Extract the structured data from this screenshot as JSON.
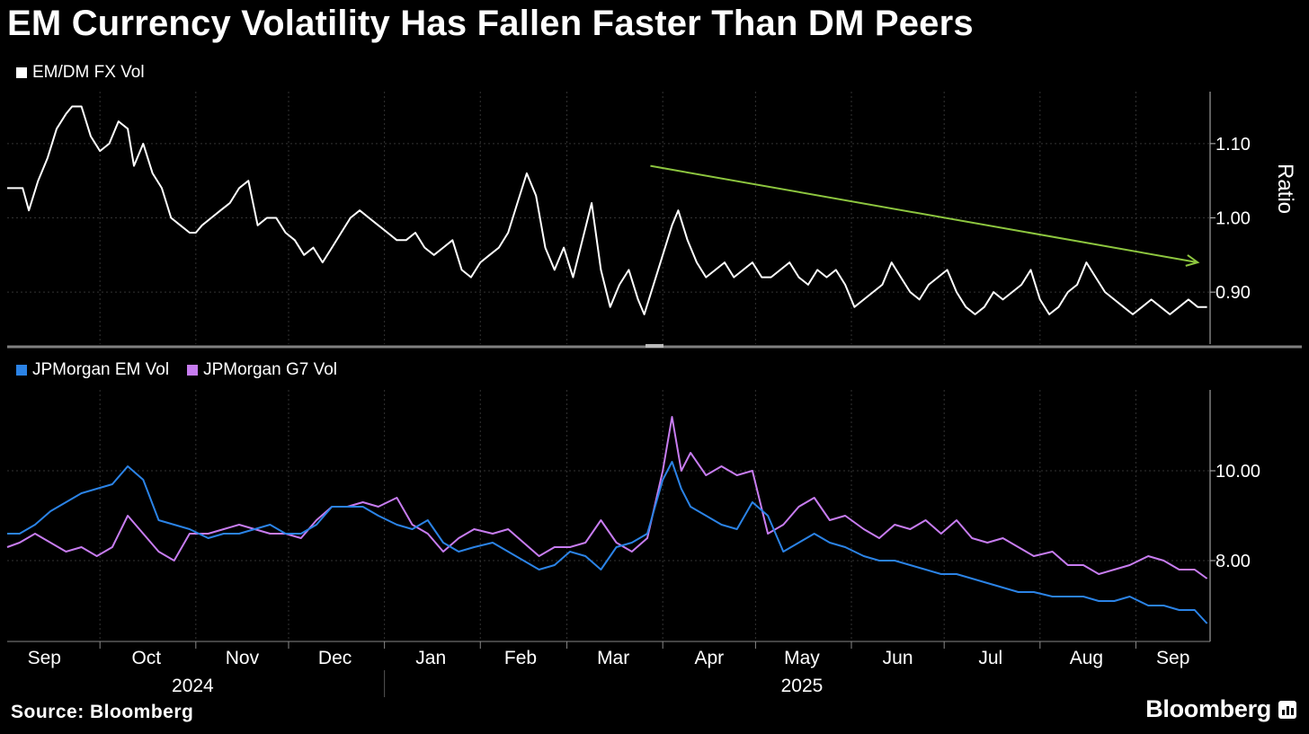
{
  "header": {
    "title": "EM Currency Volatility Has Fallen Faster Than DM Peers"
  },
  "footer": {
    "source": "Source: Bloomberg",
    "brand": "Bloomberg"
  },
  "colors": {
    "background": "#000000",
    "ratio": "#ffffff",
    "em": "#2b83e6",
    "g7": "#c77cf0",
    "trend": "#8dc63f",
    "grid": "#333333",
    "divider": "#7f7f7f"
  },
  "x_axis": {
    "months": [
      "Sep",
      "Oct",
      "Nov",
      "Dec",
      "Jan",
      "Feb",
      "Mar",
      "Apr",
      "May",
      "Jun",
      "Jul",
      "Aug",
      "Sep"
    ],
    "years": [
      "2024",
      "2025"
    ]
  },
  "chart_data": [
    {
      "id": "top",
      "type": "line",
      "legend": "EM/DM FX Vol",
      "ylabel": "Ratio",
      "ylim": [
        0.83,
        1.17
      ],
      "yticks": [
        "1.10",
        "1.00",
        "0.90"
      ],
      "x_range": [
        "2024-09-01",
        "2025-09-25"
      ],
      "series": [
        {
          "name": "EM/DM FX Vol",
          "x": [
            "2024-09-01",
            "2024-09-06",
            "2024-09-08",
            "2024-09-11",
            "2024-09-14",
            "2024-09-17",
            "2024-09-20",
            "2024-09-22",
            "2024-09-25",
            "2024-09-28",
            "2024-10-01",
            "2024-10-04",
            "2024-10-07",
            "2024-10-10",
            "2024-10-12",
            "2024-10-15",
            "2024-10-18",
            "2024-10-21",
            "2024-10-24",
            "2024-10-27",
            "2024-10-30",
            "2024-11-01",
            "2024-11-03",
            "2024-11-06",
            "2024-11-09",
            "2024-11-12",
            "2024-11-15",
            "2024-11-18",
            "2024-11-21",
            "2024-11-24",
            "2024-11-27",
            "2024-11-30",
            "2024-12-03",
            "2024-12-06",
            "2024-12-09",
            "2024-12-12",
            "2024-12-15",
            "2024-12-18",
            "2024-12-21",
            "2024-12-24",
            "2024-12-27",
            "2024-12-30",
            "2025-01-02",
            "2025-01-05",
            "2025-01-08",
            "2025-01-11",
            "2025-01-14",
            "2025-01-17",
            "2025-01-20",
            "2025-01-23",
            "2025-01-26",
            "2025-01-29",
            "2025-02-01",
            "2025-02-04",
            "2025-02-07",
            "2025-02-10",
            "2025-02-13",
            "2025-02-16",
            "2025-02-19",
            "2025-02-22",
            "2025-02-25",
            "2025-02-28",
            "2025-03-03",
            "2025-03-06",
            "2025-03-09",
            "2025-03-12",
            "2025-03-15",
            "2025-03-18",
            "2025-03-21",
            "2025-03-24",
            "2025-03-26",
            "2025-03-29",
            "2025-04-01",
            "2025-04-04",
            "2025-04-06",
            "2025-04-09",
            "2025-04-12",
            "2025-04-15",
            "2025-04-18",
            "2025-04-21",
            "2025-04-24",
            "2025-04-27",
            "2025-04-30",
            "2025-05-03",
            "2025-05-06",
            "2025-05-09",
            "2025-05-12",
            "2025-05-15",
            "2025-05-18",
            "2025-05-21",
            "2025-05-24",
            "2025-05-27",
            "2025-05-30",
            "2025-06-02",
            "2025-06-05",
            "2025-06-08",
            "2025-06-11",
            "2025-06-14",
            "2025-06-17",
            "2025-06-20",
            "2025-06-23",
            "2025-06-26",
            "2025-06-29",
            "2025-07-02",
            "2025-07-05",
            "2025-07-08",
            "2025-07-11",
            "2025-07-14",
            "2025-07-17",
            "2025-07-20",
            "2025-07-23",
            "2025-07-26",
            "2025-07-29",
            "2025-08-01",
            "2025-08-04",
            "2025-08-07",
            "2025-08-10",
            "2025-08-13",
            "2025-08-16",
            "2025-08-19",
            "2025-08-22",
            "2025-08-25",
            "2025-08-28",
            "2025-08-31",
            "2025-09-03",
            "2025-09-06",
            "2025-09-09",
            "2025-09-12",
            "2025-09-15",
            "2025-09-18",
            "2025-09-21",
            "2025-09-24"
          ],
          "values": [
            1.04,
            1.04,
            1.01,
            1.05,
            1.08,
            1.12,
            1.14,
            1.15,
            1.15,
            1.11,
            1.09,
            1.1,
            1.13,
            1.12,
            1.07,
            1.1,
            1.06,
            1.04,
            1.0,
            0.99,
            0.98,
            0.98,
            0.99,
            1.0,
            1.01,
            1.02,
            1.04,
            1.05,
            0.99,
            1.0,
            1.0,
            0.98,
            0.97,
            0.95,
            0.96,
            0.94,
            0.96,
            0.98,
            1.0,
            1.01,
            1.0,
            0.99,
            0.98,
            0.97,
            0.97,
            0.98,
            0.96,
            0.95,
            0.96,
            0.97,
            0.93,
            0.92,
            0.94,
            0.95,
            0.96,
            0.98,
            1.02,
            1.06,
            1.03,
            0.96,
            0.93,
            0.96,
            0.92,
            0.97,
            1.02,
            0.93,
            0.88,
            0.91,
            0.93,
            0.89,
            0.87,
            0.91,
            0.95,
            0.99,
            1.01,
            0.97,
            0.94,
            0.92,
            0.93,
            0.94,
            0.92,
            0.93,
            0.94,
            0.92,
            0.92,
            0.93,
            0.94,
            0.92,
            0.91,
            0.93,
            0.92,
            0.93,
            0.91,
            0.88,
            0.89,
            0.9,
            0.91,
            0.94,
            0.92,
            0.9,
            0.89,
            0.91,
            0.92,
            0.93,
            0.9,
            0.88,
            0.87,
            0.88,
            0.9,
            0.89,
            0.9,
            0.91,
            0.93,
            0.89,
            0.87,
            0.88,
            0.9,
            0.91,
            0.94,
            0.92,
            0.9,
            0.89,
            0.88,
            0.87,
            0.88,
            0.89,
            0.88,
            0.87,
            0.88,
            0.89,
            0.88,
            0.88
          ]
        }
      ],
      "trend": {
        "x": [
          "2025-03-28",
          "2025-09-21"
        ],
        "values": [
          1.07,
          0.94
        ]
      }
    },
    {
      "id": "bottom",
      "type": "line",
      "ylim": [
        6.2,
        11.8
      ],
      "yticks": [
        "10.00",
        "8.00"
      ],
      "x_range": [
        "2024-09-01",
        "2025-09-25"
      ],
      "series": [
        {
          "name": "JPMorgan EM Vol",
          "x": [
            "2024-09-01",
            "2024-09-05",
            "2024-09-10",
            "2024-09-15",
            "2024-09-20",
            "2024-09-25",
            "2024-09-30",
            "2024-10-05",
            "2024-10-10",
            "2024-10-15",
            "2024-10-20",
            "2024-10-25",
            "2024-10-30",
            "2024-11-05",
            "2024-11-10",
            "2024-11-15",
            "2024-11-20",
            "2024-11-25",
            "2024-11-30",
            "2024-12-05",
            "2024-12-10",
            "2024-12-15",
            "2024-12-20",
            "2024-12-25",
            "2024-12-30",
            "2025-01-05",
            "2025-01-10",
            "2025-01-15",
            "2025-01-20",
            "2025-01-25",
            "2025-01-30",
            "2025-02-05",
            "2025-02-10",
            "2025-02-15",
            "2025-02-20",
            "2025-02-25",
            "2025-03-02",
            "2025-03-07",
            "2025-03-12",
            "2025-03-17",
            "2025-03-22",
            "2025-03-27",
            "2025-04-01",
            "2025-04-04",
            "2025-04-07",
            "2025-04-10",
            "2025-04-15",
            "2025-04-20",
            "2025-04-25",
            "2025-04-30",
            "2025-05-05",
            "2025-05-10",
            "2025-05-15",
            "2025-05-20",
            "2025-05-25",
            "2025-05-30",
            "2025-06-05",
            "2025-06-10",
            "2025-06-15",
            "2025-06-20",
            "2025-06-25",
            "2025-06-30",
            "2025-07-05",
            "2025-07-10",
            "2025-07-15",
            "2025-07-20",
            "2025-07-25",
            "2025-07-30",
            "2025-08-05",
            "2025-08-10",
            "2025-08-15",
            "2025-08-20",
            "2025-08-25",
            "2025-08-30",
            "2025-09-05",
            "2025-09-10",
            "2025-09-15",
            "2025-09-20",
            "2025-09-24"
          ],
          "values": [
            8.6,
            8.6,
            8.8,
            9.1,
            9.3,
            9.5,
            9.6,
            9.7,
            10.1,
            9.8,
            8.9,
            8.8,
            8.7,
            8.5,
            8.6,
            8.6,
            8.7,
            8.8,
            8.6,
            8.6,
            8.8,
            9.2,
            9.2,
            9.2,
            9.0,
            8.8,
            8.7,
            8.9,
            8.4,
            8.2,
            8.3,
            8.4,
            8.2,
            8.0,
            7.8,
            7.9,
            8.2,
            8.1,
            7.8,
            8.3,
            8.4,
            8.6,
            9.8,
            10.2,
            9.6,
            9.2,
            9.0,
            8.8,
            8.7,
            9.3,
            9.0,
            8.2,
            8.4,
            8.6,
            8.4,
            8.3,
            8.1,
            8.0,
            8.0,
            7.9,
            7.8,
            7.7,
            7.7,
            7.6,
            7.5,
            7.4,
            7.3,
            7.3,
            7.2,
            7.2,
            7.2,
            7.1,
            7.1,
            7.2,
            7.0,
            7.0,
            6.9,
            6.9,
            6.6
          ]
        },
        {
          "name": "JPMorgan G7 Vol",
          "x": [
            "2024-09-01",
            "2024-09-05",
            "2024-09-10",
            "2024-09-15",
            "2024-09-20",
            "2024-09-25",
            "2024-09-30",
            "2024-10-05",
            "2024-10-10",
            "2024-10-15",
            "2024-10-20",
            "2024-10-25",
            "2024-10-30",
            "2024-11-05",
            "2024-11-10",
            "2024-11-15",
            "2024-11-20",
            "2024-11-25",
            "2024-11-30",
            "2024-12-05",
            "2024-12-10",
            "2024-12-15",
            "2024-12-20",
            "2024-12-25",
            "2024-12-30",
            "2025-01-05",
            "2025-01-10",
            "2025-01-15",
            "2025-01-20",
            "2025-01-25",
            "2025-01-30",
            "2025-02-05",
            "2025-02-10",
            "2025-02-15",
            "2025-02-20",
            "2025-02-25",
            "2025-03-02",
            "2025-03-07",
            "2025-03-12",
            "2025-03-17",
            "2025-03-22",
            "2025-03-27",
            "2025-04-01",
            "2025-04-04",
            "2025-04-07",
            "2025-04-10",
            "2025-04-15",
            "2025-04-20",
            "2025-04-25",
            "2025-04-30",
            "2025-05-05",
            "2025-05-10",
            "2025-05-15",
            "2025-05-20",
            "2025-05-25",
            "2025-05-30",
            "2025-06-05",
            "2025-06-10",
            "2025-06-15",
            "2025-06-20",
            "2025-06-25",
            "2025-06-30",
            "2025-07-05",
            "2025-07-10",
            "2025-07-15",
            "2025-07-20",
            "2025-07-25",
            "2025-07-30",
            "2025-08-05",
            "2025-08-10",
            "2025-08-15",
            "2025-08-20",
            "2025-08-25",
            "2025-08-30",
            "2025-09-05",
            "2025-09-10",
            "2025-09-15",
            "2025-09-20",
            "2025-09-24"
          ],
          "values": [
            8.3,
            8.4,
            8.6,
            8.4,
            8.2,
            8.3,
            8.1,
            8.3,
            9.0,
            8.6,
            8.2,
            8.0,
            8.6,
            8.6,
            8.7,
            8.8,
            8.7,
            8.6,
            8.6,
            8.5,
            8.9,
            9.2,
            9.2,
            9.3,
            9.2,
            9.4,
            8.8,
            8.6,
            8.2,
            8.5,
            8.7,
            8.6,
            8.7,
            8.4,
            8.1,
            8.3,
            8.3,
            8.4,
            8.9,
            8.4,
            8.2,
            8.5,
            10.0,
            11.2,
            10.0,
            10.4,
            9.9,
            10.1,
            9.9,
            10.0,
            8.6,
            8.8,
            9.2,
            9.4,
            8.9,
            9.0,
            8.7,
            8.5,
            8.8,
            8.7,
            8.9,
            8.6,
            8.9,
            8.5,
            8.4,
            8.5,
            8.3,
            8.1,
            8.2,
            7.9,
            7.9,
            7.7,
            7.8,
            7.9,
            8.1,
            8.0,
            7.8,
            7.8,
            7.6
          ]
        }
      ]
    }
  ]
}
